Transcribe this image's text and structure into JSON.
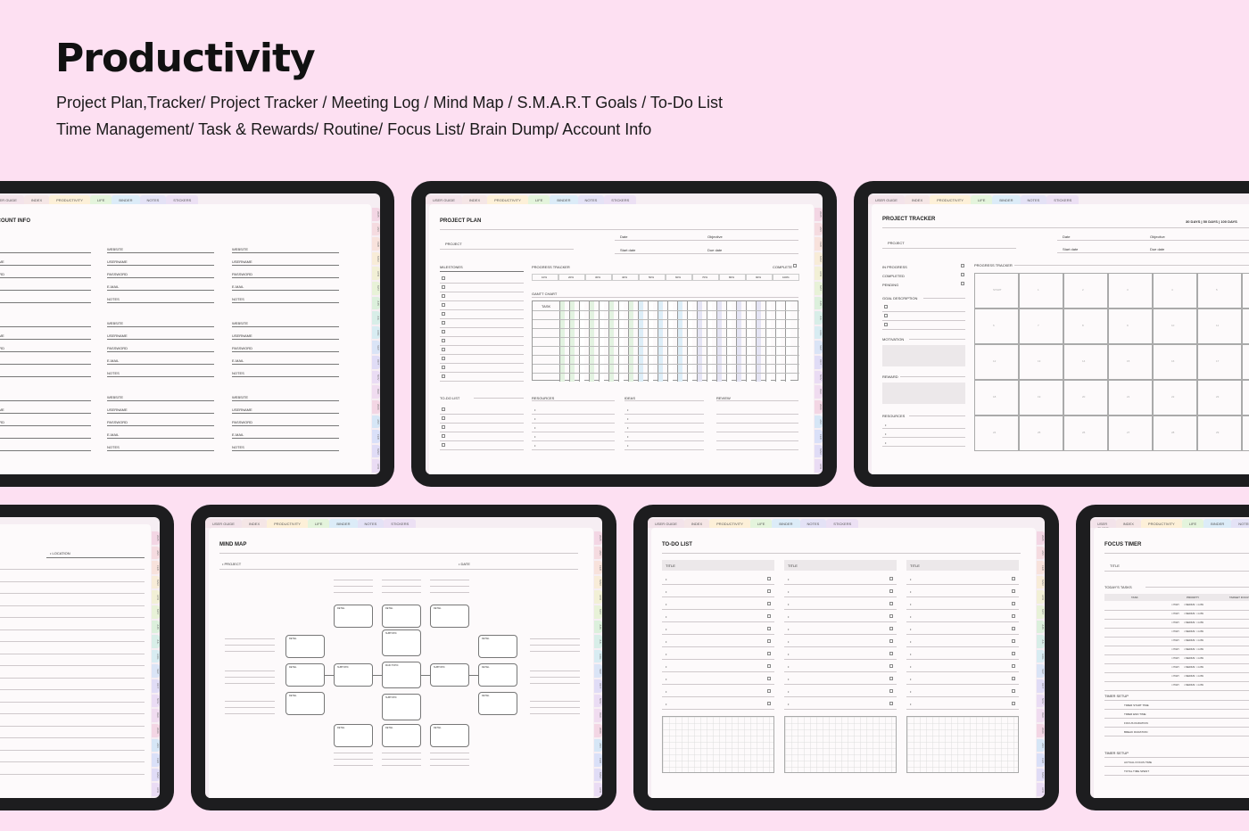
{
  "header": {
    "title": "Productivity",
    "subtitle_line1": "Project Plan,Tracker/ Project Tracker / Meeting Log / Mind Map / S.M.A.R.T Goals / To-Do List",
    "subtitle_line2": "Time Management/ Task & Rewards/ Routine/ Focus List/ Brain Dump/ Account Info"
  },
  "tabs": [
    "USER GUIDE",
    "INDEX",
    "PRODUCTIVITY",
    "LIFE",
    "BINDER",
    "NOTES",
    "STICKERS"
  ],
  "tab_colors": [
    "#f3e3ea",
    "#f5e6e6",
    "#fdf0d8",
    "#e4f4dc",
    "#dcecf8",
    "#e4e2f6",
    "#ece0f4"
  ],
  "side_tabs": [
    "2025",
    "JAN",
    "FEB",
    "MAR",
    "APR",
    "MAY",
    "JUN",
    "JUL",
    "AUG",
    "SEP",
    "OCT",
    "NOV",
    "DEC",
    "2026",
    "JAN",
    "FEB",
    "MAR",
    "APR"
  ],
  "side_colors": [
    "#f3d6e4",
    "#f5dbe0",
    "#f8e2dc",
    "#f8ecd8",
    "#f2f0d6",
    "#e8f2d8",
    "#dcf0dc",
    "#d8eee8",
    "#d8ecf2",
    "#dae4f6",
    "#e0dcf6",
    "#eadcf4",
    "#f0dcf0",
    "#f3d6e4",
    "#d6e6f6",
    "#dae0f8",
    "#e0dcf6",
    "#eadcf4"
  ],
  "account": {
    "title": "ACCOUNT INFO",
    "fields": [
      "WEBSITE",
      "USERNAME",
      "PASSWORD",
      "E-MAIL",
      "NOTES"
    ]
  },
  "plan": {
    "title": "PROJECT PLAN",
    "project": "PROJECT",
    "date": "Date",
    "objective": "Objective",
    "start_date": "Start date",
    "due_date": "Due date",
    "milestones": "MILESTONES",
    "progress_tracker": "PROGRESS TRACKER",
    "complete": "COMPLETE",
    "percents": [
      "10%",
      "20%",
      "30%",
      "40%",
      "50%",
      "60%",
      "70%",
      "80%",
      "90%",
      "100%"
    ],
    "gantt": "GANTT CHART",
    "task": "TASK",
    "todo": "TO-DO LIST",
    "resources": "RESOURCES",
    "ideas": "IDEAS",
    "review": "REVIEW"
  },
  "tracker": {
    "title": "PROJECT TRACKER",
    "ranges": "30 DAYS  |  50 DAYS  |  100 DAYS",
    "project": "PROJECT",
    "date": "Date",
    "objective": "Objective",
    "start_date": "Start date",
    "due_date": "Due date",
    "statuses": [
      "IN PROGRESS",
      "COMPLETED",
      "PENDING"
    ],
    "progress_tracker": "PROGRESS TRACKER",
    "start": "START",
    "goal": "GOAL DESCRIPTION",
    "motivation": "MOTIVATION",
    "reward": "REWARD",
    "resources": "RESOURCES"
  },
  "misc": {
    "location": "LOCATION"
  },
  "mindmap": {
    "title": "MIND MAP",
    "project": "PROJECT",
    "date": "DATE",
    "main_topic": "MAIN TOPIC",
    "subtopic": "SUBTOPIC",
    "detail": "DETAIL"
  },
  "todo": {
    "title": "TO-DO LIST",
    "col_title": "TITLE"
  },
  "focus": {
    "title": "FOCUS TIMER",
    "title_field": "TITLE",
    "todays_tasks": "TODAY'S TASKS",
    "task": "TASK",
    "priority": "PRIORITY",
    "target_time": "TARGET FOCUS TIME",
    "priorities": [
      "HIGH",
      "MEDIUM",
      "LOW"
    ],
    "timer_setup": "TIMER SETUP",
    "timer_rows": [
      "TIMER START TIME",
      "TIMER END TIME",
      "FOCUS DURATION",
      "BREAK DURATION"
    ],
    "timer_setup2": "TIMER SETUP",
    "actual_rows": [
      "ACTUAL FOCUS TIME",
      "TOTAL TIME SPENT"
    ]
  }
}
